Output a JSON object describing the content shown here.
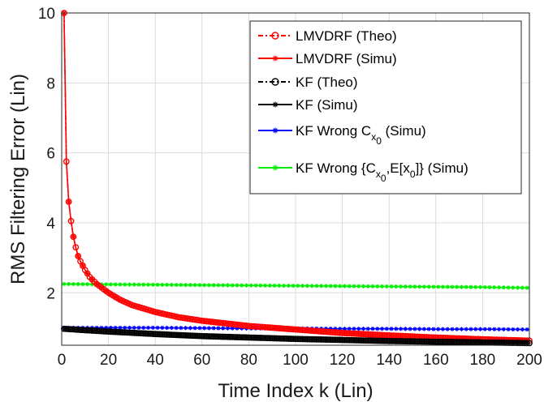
{
  "chart_data": {
    "type": "line",
    "xlabel": "Time Index k (Lin)",
    "ylabel": "RMS Filtering Error (Lin)",
    "xlim": [
      0,
      200
    ],
    "ylim": [
      0.5,
      10
    ],
    "xticks": [
      0,
      20,
      40,
      60,
      80,
      100,
      120,
      140,
      160,
      180,
      200
    ],
    "yticks": [
      2,
      4,
      6,
      8,
      10
    ],
    "grid": true,
    "legend_position": "top-right",
    "series": [
      {
        "name": "LMVDRF (Theo)",
        "color": "#ff0000",
        "style": "dash-dot",
        "marker": "circle",
        "x": [
          1,
          2,
          3,
          4,
          5,
          6,
          7,
          8,
          10,
          12,
          15,
          20,
          25,
          30,
          40,
          50,
          60,
          80,
          100,
          120,
          140,
          160,
          180,
          200
        ],
        "y": [
          10,
          5.75,
          4.6,
          4.05,
          3.6,
          3.3,
          3.05,
          2.9,
          2.65,
          2.45,
          2.25,
          2.0,
          1.8,
          1.65,
          1.45,
          1.3,
          1.2,
          1.05,
          0.95,
          0.85,
          0.78,
          0.72,
          0.67,
          0.63
        ]
      },
      {
        "name": "LMVDRF (Simu)",
        "color": "#ff0000",
        "style": "solid",
        "marker": "star",
        "x": [
          1,
          2,
          3,
          4,
          5,
          6,
          7,
          8,
          10,
          12,
          15,
          20,
          25,
          30,
          40,
          50,
          60,
          80,
          100,
          120,
          140,
          160,
          180,
          200
        ],
        "y": [
          10,
          5.75,
          4.6,
          4.05,
          3.6,
          3.3,
          3.05,
          2.9,
          2.65,
          2.45,
          2.25,
          2.0,
          1.8,
          1.65,
          1.45,
          1.3,
          1.2,
          1.05,
          0.95,
          0.85,
          0.78,
          0.72,
          0.67,
          0.63
        ]
      },
      {
        "name": "KF (Theo)",
        "color": "#000000",
        "style": "dash-dot",
        "marker": "circle",
        "x": [
          1,
          10,
          20,
          40,
          60,
          80,
          100,
          120,
          140,
          160,
          180,
          200
        ],
        "y": [
          0.97,
          0.93,
          0.89,
          0.82,
          0.76,
          0.72,
          0.68,
          0.65,
          0.62,
          0.6,
          0.58,
          0.56
        ]
      },
      {
        "name": "KF (Simu)",
        "color": "#000000",
        "style": "solid",
        "marker": "star",
        "x": [
          1,
          10,
          20,
          40,
          60,
          80,
          100,
          120,
          140,
          160,
          180,
          200
        ],
        "y": [
          0.97,
          0.93,
          0.89,
          0.82,
          0.76,
          0.72,
          0.68,
          0.65,
          0.62,
          0.6,
          0.58,
          0.56
        ]
      },
      {
        "name": "KF Wrong C",
        "name_sub": "x",
        "name_subsub": "0",
        "name_tail": " (Simu)",
        "color": "#0000ff",
        "style": "solid",
        "marker": "star",
        "x": [
          1,
          20,
          40,
          60,
          80,
          100,
          120,
          140,
          160,
          180,
          200
        ],
        "y": [
          1.0,
          1.0,
          1.0,
          0.99,
          0.98,
          0.98,
          0.97,
          0.97,
          0.96,
          0.96,
          0.95
        ]
      },
      {
        "name": "KF Wrong {C",
        "name_sub": "x",
        "name_subsub": "0",
        "name_tail": ",E[x",
        "name_sub2": "0",
        "name_tail2": "]} (Simu)",
        "color": "#00ee00",
        "style": "solid",
        "marker": "star",
        "x": [
          1,
          20,
          40,
          60,
          80,
          100,
          120,
          140,
          160,
          180,
          200
        ],
        "y": [
          2.25,
          2.24,
          2.23,
          2.22,
          2.21,
          2.2,
          2.19,
          2.18,
          2.17,
          2.16,
          2.14
        ]
      }
    ]
  }
}
